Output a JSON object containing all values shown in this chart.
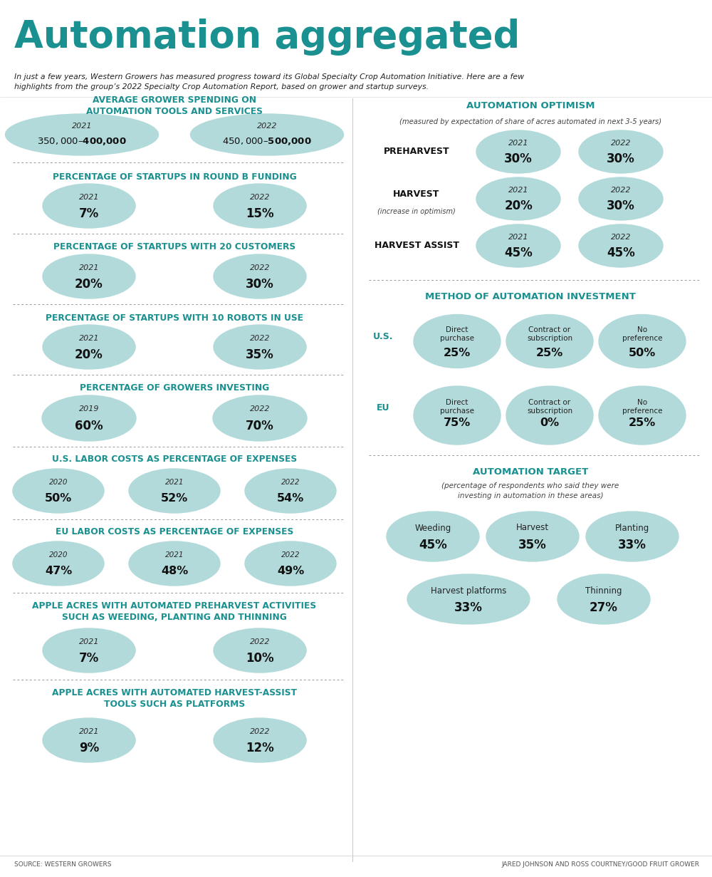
{
  "title": "Automation aggregated",
  "subtitle": "In just a few years, Western Growers has measured progress toward its Global Specialty Crop Automation Initiative. Here are a few\nhighlights from the group’s 2022 Specialty Crop Automation Report, based on grower and startup surveys.",
  "bg_color": "#ffffff",
  "title_color": "#1a9090",
  "header_color": "#1a9090",
  "ellipse_color": "#b2dada",
  "divider_color": "#999999",
  "source_left": "SOURCE: WESTERN GROWERS",
  "source_right": "JARED JOHNSON AND ROSS COURTNEY/GOOD FRUIT GROWER",
  "left_sections": [
    {
      "title": "AVERAGE GROWER SPENDING ON\nAUTOMATION TOOLS AND SERVICES",
      "items": [
        {
          "year": "2021",
          "value": "$350,000–$400,000",
          "size": "large"
        },
        {
          "year": "2022",
          "value": "$450,000–$500,000",
          "size": "large"
        }
      ]
    },
    {
      "title": "PERCENTAGE OF STARTUPS IN ROUND B FUNDING",
      "items": [
        {
          "year": "2021",
          "value": "7%",
          "size": "medium"
        },
        {
          "year": "2022",
          "value": "15%",
          "size": "medium"
        }
      ]
    },
    {
      "title": "PERCENTAGE OF STARTUPS WITH 20 CUSTOMERS",
      "items": [
        {
          "year": "2021",
          "value": "20%",
          "size": "medium"
        },
        {
          "year": "2022",
          "value": "30%",
          "size": "medium"
        }
      ]
    },
    {
      "title": "PERCENTAGE OF STARTUPS WITH 10 ROBOTS IN USE",
      "items": [
        {
          "year": "2021",
          "value": "20%",
          "size": "medium"
        },
        {
          "year": "2022",
          "value": "35%",
          "size": "medium"
        }
      ]
    },
    {
      "title": "PERCENTAGE OF GROWERS INVESTING",
      "items": [
        {
          "year": "2019",
          "value": "60%",
          "size": "medium"
        },
        {
          "year": "2022",
          "value": "70%",
          "size": "medium"
        }
      ]
    },
    {
      "title": "U.S. LABOR COSTS AS PERCENTAGE OF EXPENSES",
      "items": [
        {
          "year": "2020",
          "value": "50%",
          "size": "medium"
        },
        {
          "year": "2021",
          "value": "52%",
          "size": "medium"
        },
        {
          "year": "2022",
          "value": "54%",
          "size": "medium"
        }
      ]
    },
    {
      "title": "EU LABOR COSTS AS PERCENTAGE OF EXPENSES",
      "items": [
        {
          "year": "2020",
          "value": "47%",
          "size": "medium"
        },
        {
          "year": "2021",
          "value": "48%",
          "size": "medium"
        },
        {
          "year": "2022",
          "value": "49%",
          "size": "medium"
        }
      ]
    },
    {
      "title": "APPLE ACRES WITH AUTOMATED PREHARVEST ACTIVITIES\nSUCH AS WEEDING, PLANTING AND THINNING",
      "items": [
        {
          "year": "2021",
          "value": "7%",
          "size": "medium"
        },
        {
          "year": "2022",
          "value": "10%",
          "size": "medium"
        }
      ]
    },
    {
      "title": "APPLE ACRES WITH AUTOMATED HARVEST-ASSIST\nTOOLS SUCH AS PLATFORMS",
      "items": [
        {
          "year": "2021",
          "value": "9%",
          "size": "medium"
        },
        {
          "year": "2022",
          "value": "12%",
          "size": "medium"
        }
      ]
    }
  ],
  "right_top": {
    "title": "AUTOMATION OPTIMISM",
    "subtitle": "(measured by expectation of share of acres automated in next 3-5 years)",
    "rows": [
      {
        "label": "PREHARVEST",
        "label_sub": "",
        "items": [
          {
            "year": "2021",
            "value": "30%"
          },
          {
            "year": "2022",
            "value": "30%"
          }
        ]
      },
      {
        "label": "HARVEST",
        "label_sub": "(increase in optimism)",
        "items": [
          {
            "year": "2021",
            "value": "20%"
          },
          {
            "year": "2022",
            "value": "30%"
          }
        ]
      },
      {
        "label": "HARVEST ASSIST",
        "label_sub": "",
        "items": [
          {
            "year": "2021",
            "value": "45%"
          },
          {
            "year": "2022",
            "value": "45%"
          }
        ]
      }
    ]
  },
  "right_mid": {
    "title": "METHOD OF AUTOMATION INVESTMENT",
    "rows": [
      {
        "label": "U.S.",
        "items": [
          {
            "name": "Direct\npurchase",
            "value": "25%"
          },
          {
            "name": "Contract or\nsubscription",
            "value": "25%"
          },
          {
            "name": "No\npreference",
            "value": "50%"
          }
        ]
      },
      {
        "label": "EU",
        "items": [
          {
            "name": "Direct\npurchase",
            "value": "75%"
          },
          {
            "name": "Contract or\nsubscription",
            "value": "0%"
          },
          {
            "name": "No\npreference",
            "value": "25%"
          }
        ]
      }
    ]
  },
  "right_bot": {
    "title": "AUTOMATION TARGET",
    "subtitle": "(percentage of respondents who said they were\ninvesting in automation in these areas)",
    "row1": [
      {
        "name": "Weeding",
        "value": "45%"
      },
      {
        "name": "Harvest",
        "value": "35%"
      },
      {
        "name": "Planting",
        "value": "33%"
      }
    ],
    "row2": [
      {
        "name": "Harvest platforms",
        "value": "33%"
      },
      {
        "name": "Thinning",
        "value": "27%"
      }
    ]
  }
}
